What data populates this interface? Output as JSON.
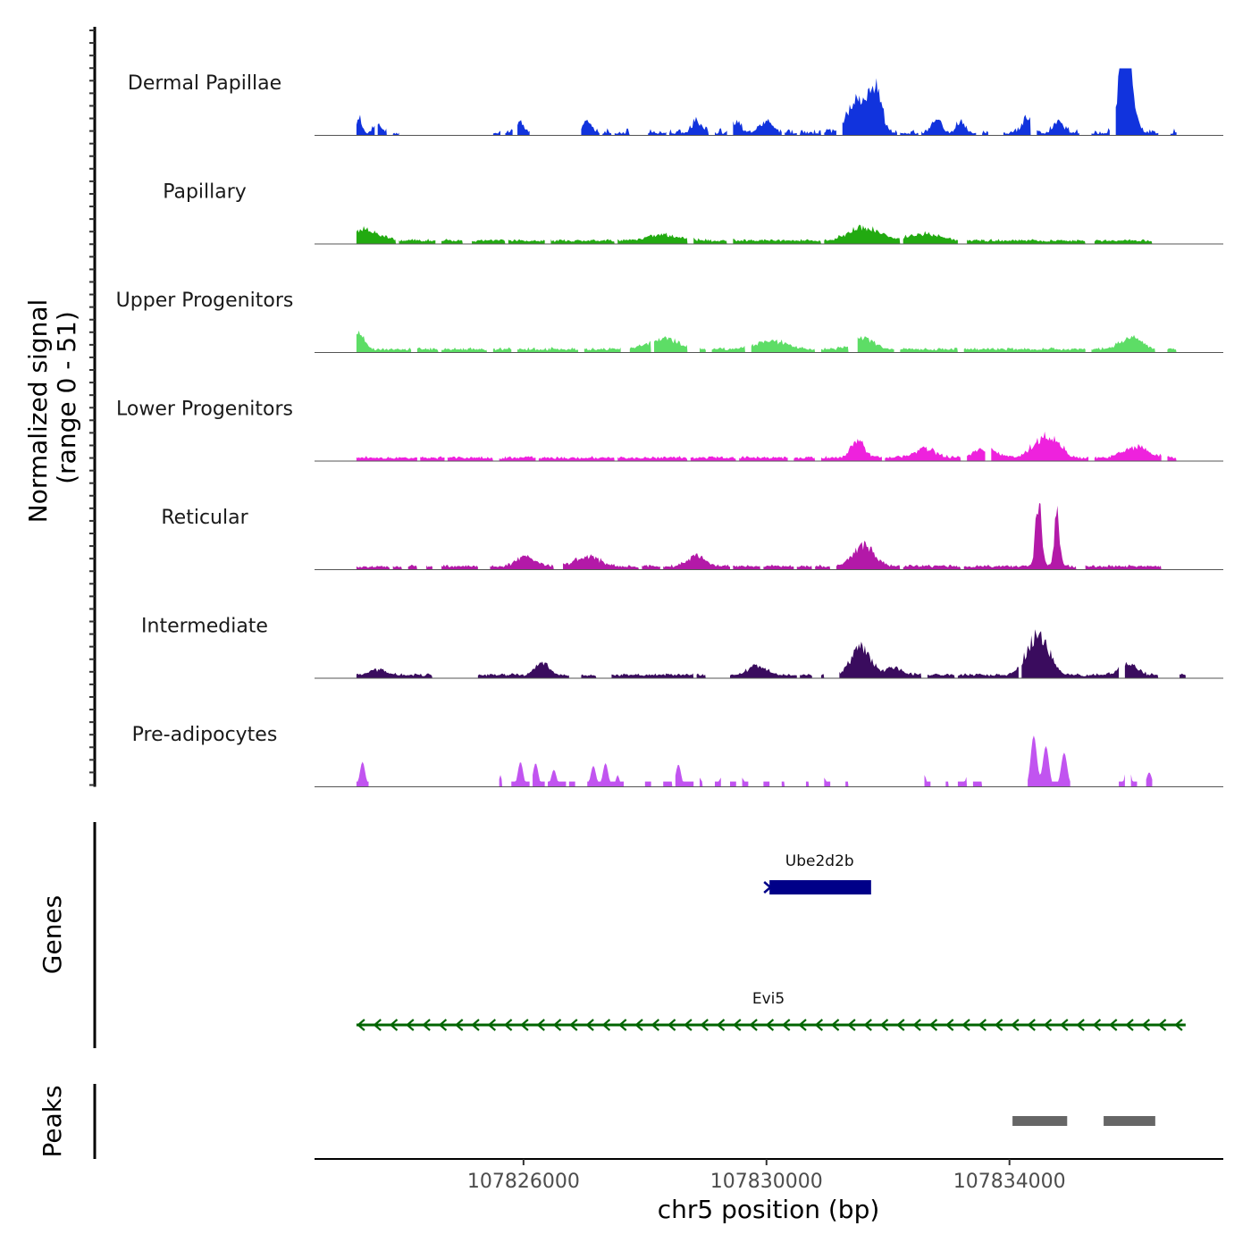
{
  "chart_data": {
    "type": "area",
    "title": "",
    "xlabel": "chr5 position (bp)",
    "ylabel": "Normalized signal",
    "ylabel_range": "(range 0 - 51)",
    "xlim": [
      107822560,
      107837520
    ],
    "ylim": [
      0,
      51
    ],
    "x_ticks": [
      107826000,
      107830000,
      107834000
    ],
    "x_tick_labels": [
      "107826000",
      "107830000",
      "107834000"
    ],
    "coverage_x_range": [
      107823250,
      107836900
    ],
    "tracks": [
      {
        "name": "Dermal Papillae",
        "color": "#1133dd",
        "mode": "spiky",
        "peaks": [
          [
            107823300,
            12,
            60
          ],
          [
            107823600,
            6,
            100
          ],
          [
            107825950,
            8,
            100
          ],
          [
            107827050,
            8,
            120
          ],
          [
            107828850,
            8,
            120
          ],
          [
            107829500,
            7,
            120
          ],
          [
            107830000,
            9,
            140
          ],
          [
            107831500,
            27,
            220
          ],
          [
            107831800,
            30,
            140
          ],
          [
            107832800,
            11,
            120
          ],
          [
            107833200,
            8,
            100
          ],
          [
            107834300,
            12,
            120
          ],
          [
            107835870,
            35,
            130
          ],
          [
            107835950,
            42,
            140
          ],
          [
            107834800,
            9,
            120
          ]
        ],
        "segments": [
          [
            107823250,
            107823550
          ],
          [
            107823600,
            107823750
          ],
          [
            107823850,
            107823950
          ],
          [
            107825500,
            107825620
          ],
          [
            107825700,
            107825820
          ],
          [
            107825900,
            107826100
          ],
          [
            107826950,
            107827250
          ],
          [
            107827300,
            107827450
          ],
          [
            107827500,
            107827750
          ],
          [
            107828050,
            107828350
          ],
          [
            107828400,
            107829050
          ],
          [
            107829150,
            107829350
          ],
          [
            107829450,
            107830250
          ],
          [
            107830300,
            107830500
          ],
          [
            107830550,
            107830900
          ],
          [
            107830950,
            107831150
          ],
          [
            107831250,
            107832150
          ],
          [
            107832200,
            107832500
          ],
          [
            107832550,
            107833450
          ],
          [
            107833550,
            107833650
          ],
          [
            107833900,
            107834350
          ],
          [
            107834450,
            107835150
          ],
          [
            107835350,
            107835650
          ],
          [
            107835750,
            107836450
          ],
          [
            107836650,
            107836750
          ]
        ]
      },
      {
        "name": "Papillary",
        "color": "#22aa11",
        "mode": "smooth",
        "peaks": [
          [
            107823400,
            9,
            300
          ],
          [
            107831600,
            10,
            350
          ],
          [
            107832600,
            5,
            400
          ],
          [
            107828300,
            4,
            400
          ]
        ],
        "segments": [
          [
            107823250,
            107823900
          ],
          [
            107823950,
            107824550
          ],
          [
            107824650,
            107825000
          ],
          [
            107825150,
            107825700
          ],
          [
            107825750,
            107826350
          ],
          [
            107826450,
            107827500
          ],
          [
            107827550,
            107828700
          ],
          [
            107828800,
            107829350
          ],
          [
            107829450,
            107830900
          ],
          [
            107830950,
            107832200
          ],
          [
            107832250,
            107833150
          ],
          [
            107833300,
            107835250
          ],
          [
            107835400,
            107836350
          ]
        ]
      },
      {
        "name": "Upper Progenitors",
        "color": "#5ddd66",
        "mode": "smooth",
        "peaks": [
          [
            107823300,
            13,
            120
          ],
          [
            107828300,
            8,
            350
          ],
          [
            107831600,
            8,
            250
          ],
          [
            107836000,
            9,
            250
          ],
          [
            107830100,
            6,
            350
          ]
        ],
        "segments": [
          [
            107823250,
            107824150
          ],
          [
            107824250,
            107824600
          ],
          [
            107824650,
            107825400
          ],
          [
            107825500,
            107825800
          ],
          [
            107825900,
            107826900
          ],
          [
            107827000,
            107827600
          ],
          [
            107827750,
            107828100
          ],
          [
            107828150,
            107828700
          ],
          [
            107828900,
            107829000
          ],
          [
            107829100,
            107829650
          ],
          [
            107829750,
            107830800
          ],
          [
            107830900,
            107831350
          ],
          [
            107831500,
            107832100
          ],
          [
            107832200,
            107833150
          ],
          [
            107833250,
            107835250
          ],
          [
            107835350,
            107836400
          ],
          [
            107836600,
            107836750
          ]
        ]
      },
      {
        "name": "Lower Progenitors",
        "color": "#ee22dd",
        "mode": "smooth",
        "peaks": [
          [
            107831500,
            14,
            150
          ],
          [
            107834500,
            12,
            220
          ],
          [
            107834750,
            11,
            200
          ],
          [
            107836100,
            8,
            300
          ],
          [
            107832600,
            7,
            250
          ],
          [
            107833600,
            6,
            300
          ]
        ],
        "segments": [
          [
            107823250,
            107824250
          ],
          [
            107824300,
            107824700
          ],
          [
            107824750,
            107825500
          ],
          [
            107825600,
            107826200
          ],
          [
            107826250,
            107827500
          ],
          [
            107827550,
            107828700
          ],
          [
            107828750,
            107829500
          ],
          [
            107829550,
            107830350
          ],
          [
            107830450,
            107830800
          ],
          [
            107830900,
            107831900
          ],
          [
            107831950,
            107833200
          ],
          [
            107833300,
            107833600
          ],
          [
            107833700,
            107835300
          ],
          [
            107835400,
            107836500
          ],
          [
            107836600,
            107836750
          ]
        ]
      },
      {
        "name": "Reticular",
        "color": "#b319a8",
        "mode": "smooth",
        "peaks": [
          [
            107834480,
            50,
            70
          ],
          [
            107834780,
            39,
            60
          ],
          [
            107831600,
            15,
            250
          ],
          [
            107826050,
            8,
            200
          ],
          [
            107828850,
            8,
            200
          ],
          [
            107827050,
            7,
            300
          ]
        ],
        "segments": [
          [
            107823250,
            107823800
          ],
          [
            107823850,
            107824000
          ],
          [
            107824100,
            107824250
          ],
          [
            107824400,
            107824500
          ],
          [
            107824650,
            107825250
          ],
          [
            107825450,
            107826500
          ],
          [
            107826650,
            107827900
          ],
          [
            107827950,
            107828250
          ],
          [
            107828300,
            107829400
          ],
          [
            107829450,
            107829900
          ],
          [
            107829950,
            107830450
          ],
          [
            107830500,
            107830750
          ],
          [
            107830800,
            107831050
          ],
          [
            107831150,
            107832200
          ],
          [
            107832250,
            107833200
          ],
          [
            107833250,
            107835100
          ],
          [
            107835250,
            107836500
          ]
        ]
      },
      {
        "name": "Intermediate",
        "color": "#3a0c5e",
        "mode": "smooth",
        "peaks": [
          [
            107831550,
            21,
            220
          ],
          [
            107834470,
            31,
            250
          ],
          [
            107835950,
            9,
            200
          ],
          [
            107826300,
            10,
            150
          ],
          [
            107829850,
            7,
            200
          ],
          [
            107832100,
            5,
            200
          ],
          [
            107823600,
            4,
            200
          ]
        ],
        "segments": [
          [
            107823250,
            107824500
          ],
          [
            107825250,
            107826750
          ],
          [
            107826950,
            107827200
          ],
          [
            107827450,
            107828800
          ],
          [
            107828850,
            107829000
          ],
          [
            107829400,
            107830500
          ],
          [
            107830550,
            107830750
          ],
          [
            107830900,
            107830950
          ],
          [
            107831200,
            107832550
          ],
          [
            107832650,
            107833100
          ],
          [
            107833150,
            107834150
          ],
          [
            107834200,
            107835800
          ],
          [
            107835900,
            107836450
          ],
          [
            107836800,
            107836900
          ]
        ]
      },
      {
        "name": "Pre-adipocytes",
        "color": "#c154f0",
        "mode": "blocky",
        "peaks": [
          [
            107823350,
            19,
            60
          ],
          [
            107825620,
            9,
            30
          ],
          [
            107825950,
            19,
            60
          ],
          [
            107826200,
            18,
            60
          ],
          [
            107826500,
            13,
            60
          ],
          [
            107827150,
            16,
            60
          ],
          [
            107827350,
            18,
            60
          ],
          [
            107827550,
            9,
            40
          ],
          [
            107828250,
            6,
            40
          ],
          [
            107828550,
            17,
            60
          ],
          [
            107828900,
            7,
            40
          ],
          [
            107829250,
            7,
            40
          ],
          [
            107829600,
            7,
            40
          ],
          [
            107830100,
            7,
            40
          ],
          [
            107830350,
            7,
            40
          ],
          [
            107830950,
            7,
            40
          ],
          [
            107831250,
            7,
            40
          ],
          [
            107832600,
            9,
            40
          ],
          [
            107832900,
            7,
            40
          ],
          [
            107833300,
            8,
            40
          ],
          [
            107833750,
            7,
            40
          ],
          [
            107834400,
            39,
            70
          ],
          [
            107834600,
            31,
            70
          ],
          [
            107834900,
            26,
            70
          ],
          [
            107835950,
            19,
            60
          ],
          [
            107836300,
            11,
            60
          ]
        ],
        "segments": [
          [
            107823250,
            107823450
          ],
          [
            107825600,
            107825650
          ],
          [
            107825800,
            107826100
          ],
          [
            107826150,
            107826350
          ],
          [
            107826400,
            107826700
          ],
          [
            107826750,
            107826850
          ],
          [
            107827050,
            107827650
          ],
          [
            107828000,
            107828100
          ],
          [
            107828300,
            107828450
          ],
          [
            107828500,
            107828800
          ],
          [
            107828900,
            107828950
          ],
          [
            107829150,
            107829250
          ],
          [
            107829400,
            107829500
          ],
          [
            107829600,
            107829700
          ],
          [
            107829950,
            107830050
          ],
          [
            107830250,
            107830300
          ],
          [
            107830650,
            107830700
          ],
          [
            107830950,
            107831050
          ],
          [
            107831300,
            107831350
          ],
          [
            107832600,
            107832700
          ],
          [
            107832950,
            107833000
          ],
          [
            107833150,
            107833300
          ],
          [
            107833400,
            107833550
          ],
          [
            107834300,
            107835000
          ],
          [
            107835800,
            107835900
          ],
          [
            107836000,
            107836100
          ],
          [
            107836250,
            107836350
          ]
        ]
      }
    ],
    "genes": [
      {
        "name": "Ube2d2b",
        "start": 107830050,
        "end": 107831700,
        "strand": "+",
        "color": "#000088"
      },
      {
        "name": "Evi5",
        "start": 107823250,
        "end": 107836900,
        "strand": "-",
        "color": "#006400"
      }
    ],
    "gene_panel_label": "Genes",
    "peaks_panel_label": "Peaks",
    "peak_regions": [
      {
        "start": 107834050,
        "end": 107834950,
        "color": "#666666"
      },
      {
        "start": 107835550,
        "end": 107836400,
        "color": "#666666"
      }
    ]
  }
}
